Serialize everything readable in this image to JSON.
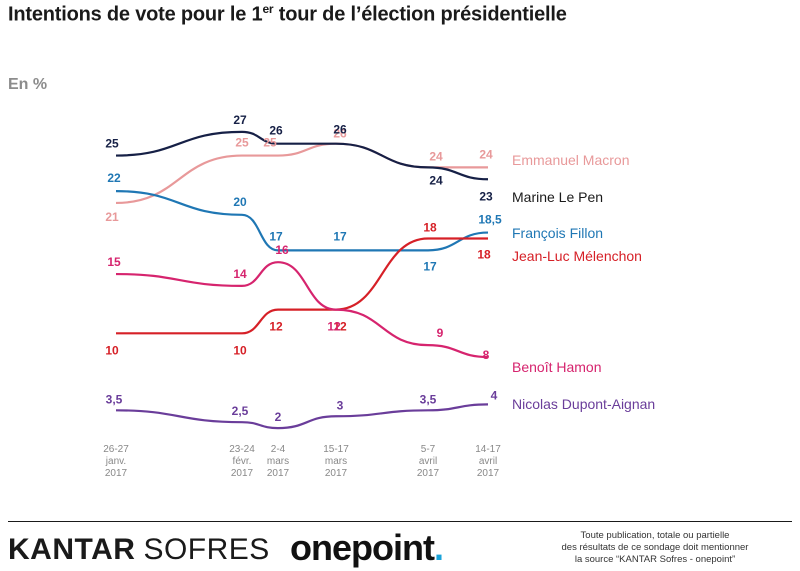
{
  "header": {
    "title_part1": "Intentions de vote pour le 1",
    "title_sup": "er",
    "title_part2": " tour de l’élection présidentielle",
    "unit": "En %"
  },
  "chart_data": {
    "type": "line",
    "title": "Intentions de vote pour le 1er tour de l’élection présidentielle",
    "ylabel": "En %",
    "x": [
      [
        "26-27",
        "janv.",
        "2017"
      ],
      [
        "23-24",
        "févr.",
        "2017"
      ],
      [
        "2-4",
        "mars",
        "2017"
      ],
      [
        "15-17",
        "mars",
        "2017"
      ],
      [
        "5-7",
        "avril",
        "2017"
      ],
      [
        "14-17",
        "avril",
        "2017"
      ]
    ],
    "ylim": [
      0,
      30
    ],
    "grid": false,
    "legend": "right",
    "series": [
      {
        "name": "Emmanuel Macron",
        "color": "#e8999a",
        "values": [
          21,
          25,
          25,
          26,
          24,
          24
        ],
        "labels": [
          "21",
          "25",
          "25",
          "26",
          "24",
          "24"
        ]
      },
      {
        "name": "Marine Le Pen",
        "color": "#162046",
        "values": [
          25,
          27,
          26,
          26,
          24,
          23
        ],
        "labels": [
          "25",
          "27",
          "26",
          "26",
          "24",
          "23"
        ]
      },
      {
        "name": "François Fillon",
        "color": "#1f77b4",
        "values": [
          22,
          20,
          17,
          17,
          17,
          18.5
        ],
        "labels": [
          "22",
          "20",
          "17",
          "17",
          "17",
          "18,5"
        ]
      },
      {
        "name": "Jean-Luc Mélenchon",
        "color": "#d62027",
        "values": [
          10,
          10,
          12,
          12,
          18,
          18
        ],
        "labels": [
          "10",
          "10",
          "12",
          "12",
          "18",
          "18"
        ]
      },
      {
        "name": "Benoît Hamon",
        "color": "#d6246e",
        "values": [
          15,
          14,
          16,
          12,
          9,
          8
        ],
        "labels": [
          "15",
          "14",
          "16",
          "12",
          "9",
          "8"
        ]
      },
      {
        "name": "Nicolas Dupont-Aignan",
        "color": "#6a3d9a",
        "values": [
          3.5,
          2.5,
          2,
          3,
          3.5,
          4
        ],
        "labels": [
          "3,5",
          "2,5",
          "2",
          "3",
          "3,5",
          "4"
        ]
      }
    ]
  },
  "footer": {
    "brand1_a": "KANTAR",
    "brand1_b": "SOFRES",
    "brand2_a": "onepoint",
    "brand2_dot": ".",
    "disclaimer_line1": "Toute publication, totale ou partielle",
    "disclaimer_line2": "des résultats de ce sondage doit mentionner",
    "disclaimer_line3": "la source “KANTAR Sofres - onepoint”"
  }
}
